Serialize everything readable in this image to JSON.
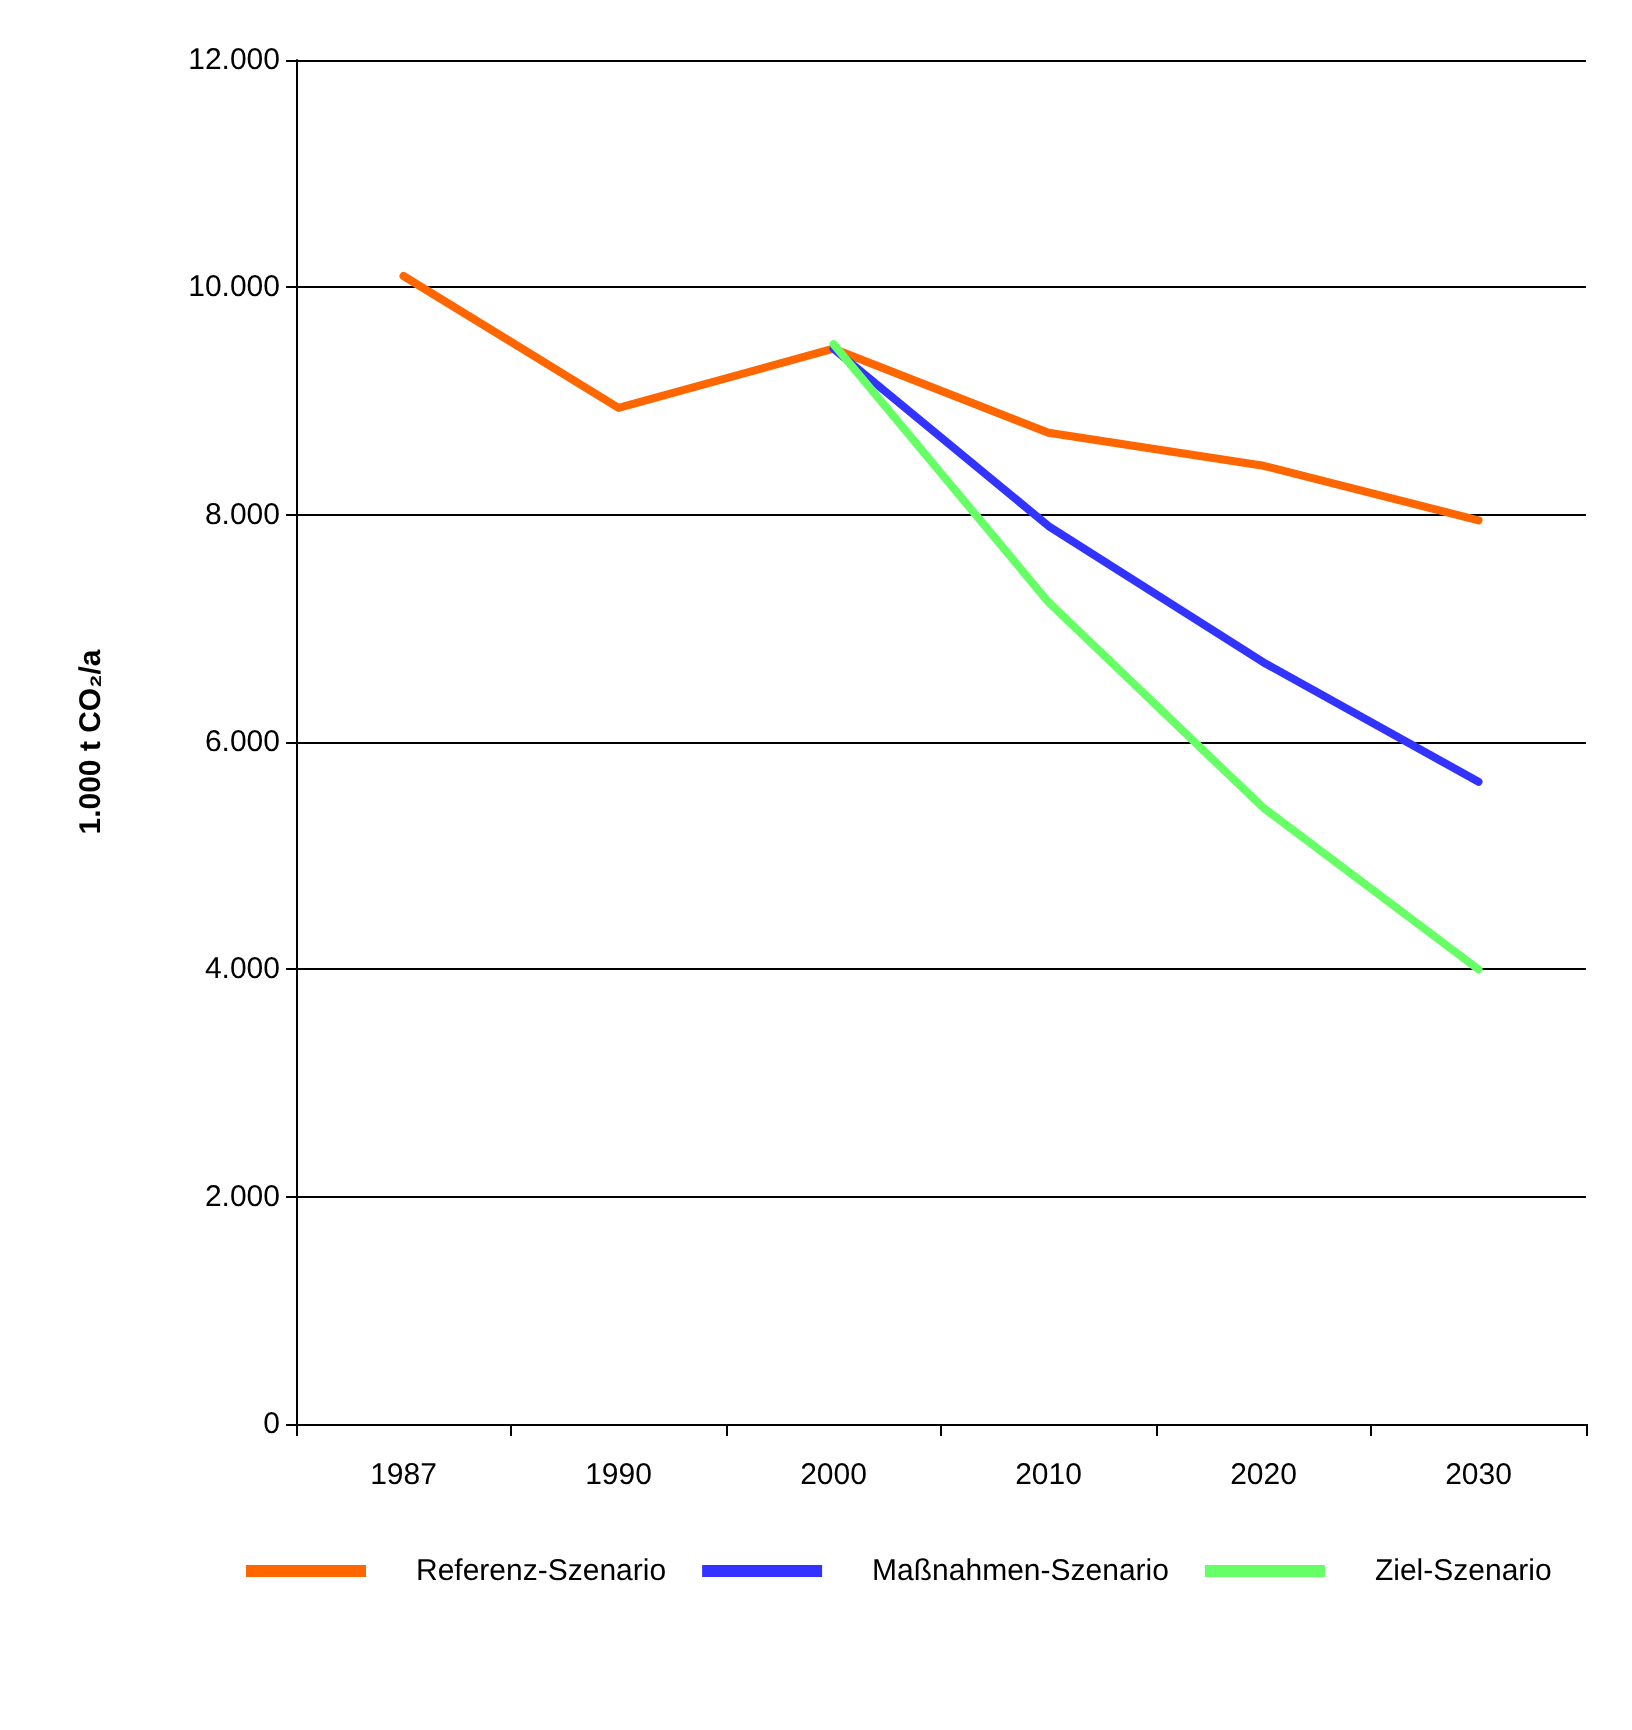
{
  "chart_data": {
    "type": "line",
    "ylabel": "1.000 t CO₂/a",
    "categories": [
      "1987",
      "1990",
      "2000",
      "2010",
      "2020",
      "2030"
    ],
    "series": [
      {
        "name": "Referenz-Szenario",
        "color": "#ff6600",
        "values": [
          10100,
          8940,
          9460,
          8720,
          8430,
          7950
        ]
      },
      {
        "name": "Maßnahmen-Szenario",
        "color": "#3333ff",
        "values": [
          null,
          null,
          9460,
          7900,
          6700,
          5650
        ]
      },
      {
        "name": "Ziel-Szenario",
        "color": "#66ff66",
        "values": [
          null,
          null,
          9500,
          7230,
          5420,
          4000
        ]
      }
    ],
    "ylim": [
      0,
      12000
    ],
    "yticks": [
      {
        "value": 0,
        "label": "0"
      },
      {
        "value": 2000,
        "label": "2.000"
      },
      {
        "value": 4000,
        "label": "4.000"
      },
      {
        "value": 6000,
        "label": "6.000"
      },
      {
        "value": 8000,
        "label": "8.000"
      },
      {
        "value": 10000,
        "label": "10.000"
      },
      {
        "value": 12000,
        "label": "12.000"
      }
    ],
    "grid": "y",
    "legend": "bottom",
    "marker": "none",
    "line_style": "solid"
  }
}
